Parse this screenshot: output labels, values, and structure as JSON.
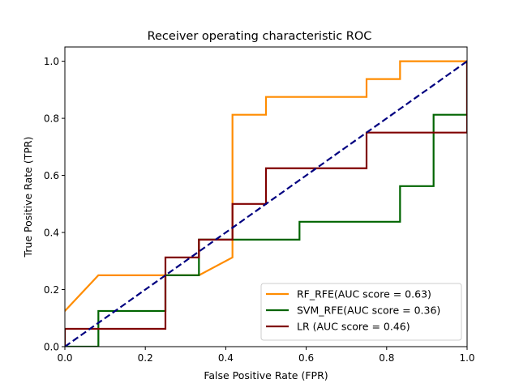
{
  "chart_data": {
    "type": "line",
    "title": "Receiver operating characteristic ROC",
    "xlabel": "False Positive Rate (FPR)",
    "ylabel": "True Positive Rate (TPR)",
    "xlim": [
      0,
      1
    ],
    "ylim": [
      0,
      1.05
    ],
    "x_ticks": [
      0.0,
      0.2,
      0.4,
      0.6,
      0.8,
      1.0
    ],
    "x_tick_labels": [
      "0.0",
      "0.2",
      "0.4",
      "0.6",
      "0.8",
      "1.0"
    ],
    "y_ticks": [
      0.0,
      0.2,
      0.4,
      0.6,
      0.8,
      1.0
    ],
    "y_tick_labels": [
      "0.0",
      "0.2",
      "0.4",
      "0.6",
      "0.8",
      "1.0"
    ],
    "grid": false,
    "legend_position": "bottom-right",
    "series": [
      {
        "name": "RF_RFE(AUC score = 0.63)",
        "color": "#ff8c00",
        "x": [
          0.0,
          0.0833,
          0.25,
          0.3333,
          0.4167,
          0.4167,
          0.5,
          0.5,
          0.75,
          0.75,
          0.8333,
          0.8333,
          1.0
        ],
        "y": [
          0.125,
          0.25,
          0.25,
          0.25,
          0.3125,
          0.8125,
          0.8125,
          0.875,
          0.875,
          0.9375,
          0.9375,
          1.0,
          1.0
        ]
      },
      {
        "name": "SVM_RFE(AUC score = 0.36)",
        "color": "#006400",
        "x": [
          0.0,
          0.0833,
          0.0833,
          0.25,
          0.25,
          0.3333,
          0.3333,
          0.5833,
          0.5833,
          0.8333,
          0.8333,
          0.9167,
          0.9167,
          1.0,
          1.0
        ],
        "y": [
          0.0,
          0.0,
          0.125,
          0.125,
          0.25,
          0.25,
          0.375,
          0.375,
          0.4375,
          0.4375,
          0.5625,
          0.5625,
          0.8125,
          0.8125,
          1.0
        ]
      },
      {
        "name": "LR (AUC score = 0.46)",
        "color": "#800000",
        "x": [
          0.0,
          0.0,
          0.25,
          0.25,
          0.3333,
          0.3333,
          0.4167,
          0.4167,
          0.5,
          0.5,
          0.75,
          0.75,
          1.0,
          1.0
        ],
        "y": [
          0.0,
          0.0625,
          0.0625,
          0.3125,
          0.3125,
          0.375,
          0.375,
          0.5,
          0.5,
          0.625,
          0.625,
          0.75,
          0.75,
          1.0
        ]
      }
    ],
    "reference_line": {
      "color": "#000080",
      "style": "dashed",
      "x": [
        0,
        1
      ],
      "y": [
        0,
        1
      ]
    }
  }
}
